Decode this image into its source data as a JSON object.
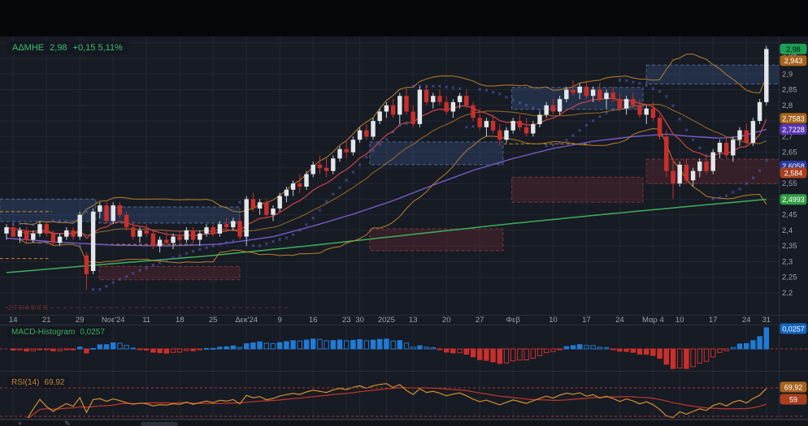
{
  "header": {
    "symbol": "ΑΔΜΗΕ",
    "price": "2,98",
    "change": "+0,15",
    "change_pct": "5,11%"
  },
  "watermark": {
    "text": "ZTRADER"
  },
  "macd_panel": {
    "label": "MACD-Histogram",
    "value": "0,0257",
    "badge": {
      "text": "0,0257",
      "bg": "#1565c0",
      "y": 405
    }
  },
  "rsi_panel": {
    "label": "RSI(14)",
    "value": "69,92",
    "badges": [
      {
        "text": "69,92",
        "bg": "#a8641e",
        "y": 477
      },
      {
        "text": "59",
        "bg": "#a8401e",
        "y": 492
      }
    ],
    "levels": [
      70,
      30
    ]
  },
  "price_axis": {
    "labels": [
      {
        "text": "2,95",
        "price": 2.95,
        "dy": -4
      },
      {
        "text": "2,9",
        "price": 2.9
      },
      {
        "text": "2,85",
        "price": 2.85
      },
      {
        "text": "2,8",
        "price": 2.8
      },
      {
        "text": "2,7",
        "price": 2.7
      },
      {
        "text": "2,65",
        "price": 2.65
      },
      {
        "text": "2,55",
        "price": 2.55
      },
      {
        "text": "2,45",
        "price": 2.45
      },
      {
        "text": "2,4",
        "price": 2.4
      },
      {
        "text": "2,35",
        "price": 2.35
      },
      {
        "text": "2,3",
        "price": 2.3
      },
      {
        "text": "2,25",
        "price": 2.25
      },
      {
        "text": "2,2",
        "price": 2.2
      }
    ],
    "badges": [
      {
        "text": "2,98",
        "price": 2.98,
        "bg": "#1e9e57",
        "fg": "#071209"
      },
      {
        "text": "2,943",
        "price": 2.943,
        "bg": "#a8641e",
        "fg": "#ffffff"
      },
      {
        "text": "2,7583",
        "price": 2.7583,
        "bg": "#a8641e",
        "fg": "#ffffff"
      },
      {
        "text": "2,7228",
        "price": 2.7228,
        "bg": "#5b35b5",
        "fg": "#ffffff"
      },
      {
        "text": "2,6058",
        "price": 2.6058,
        "bg": "#2b3a9e",
        "fg": "#ffffff"
      },
      {
        "text": "2,584",
        "price": 2.584,
        "bg": "#a8401e",
        "fg": "#ffffff"
      },
      {
        "text": "2,4993",
        "price": 2.4993,
        "bg": "#2f9e44",
        "fg": "#ffffff"
      }
    ]
  },
  "time_axis": {
    "ticks": [
      {
        "label": "14",
        "i": 1
      },
      {
        "label": "21",
        "i": 6
      },
      {
        "label": "29",
        "i": 11
      },
      {
        "label": "Νοε'24",
        "i": 16
      },
      {
        "label": "11",
        "i": 21
      },
      {
        "label": "18",
        "i": 26
      },
      {
        "label": "25",
        "i": 31
      },
      {
        "label": "Δεκ'24",
        "i": 36
      },
      {
        "label": "9",
        "i": 41
      },
      {
        "label": "16",
        "i": 46
      },
      {
        "label": "23",
        "i": 51
      },
      {
        "label": "30",
        "i": 53
      },
      {
        "label": "2025",
        "i": 57
      },
      {
        "label": "13",
        "i": 61
      },
      {
        "label": "20",
        "i": 66
      },
      {
        "label": "27",
        "i": 71
      },
      {
        "label": "Φεβ",
        "i": 76
      },
      {
        "label": "10",
        "i": 82
      },
      {
        "label": "17",
        "i": 87
      },
      {
        "label": "24",
        "i": 92
      },
      {
        "label": "Μαρ 4",
        "i": 97
      },
      {
        "label": "10",
        "i": 101
      },
      {
        "label": "17",
        "i": 106
      },
      {
        "label": "24",
        "i": 111
      },
      {
        "label": "31",
        "i": 114
      }
    ]
  },
  "colors": {
    "background": "#171b24",
    "top_strip": "#06070a",
    "grid": "#222734",
    "separator": "#2a2f3d",
    "axis_text": "#9da1ab",
    "up_candle": "#e3e6ea",
    "up_wick": "#c8ccd2",
    "down_candle": "#c9302c",
    "bollinger": "#b9802a",
    "ema_fast": "#cd4545",
    "sma_mid": "#7b5fd0",
    "sma_long": "#3faf5c",
    "psar": "#5964c8",
    "supply_zone": "rgba(62,96,148,0.30)",
    "supply_border": "rgba(116,156,214,0.55)",
    "demand_zone": "rgba(122,42,50,0.30)",
    "demand_border": "rgba(196,84,84,0.50)",
    "macd_pos": "#1f7bd4",
    "macd_neg": "#c9302c",
    "level_red": "#a83232",
    "orange_level": "#c98a2e",
    "watermark": "#6b2d2d"
  },
  "chart_data": {
    "type": "candlestick",
    "title": "ΑΔΜΗΕ daily candlestick chart with Bollinger Bands, moving averages, Parabolic SAR, supply/demand zones, MACD-Histogram and RSI(14)",
    "x_range": "2024-10-14 to 2025-03-31 (daily)",
    "price_axis_range": [
      2.2,
      3.0
    ],
    "candles_format": [
      "open",
      "high",
      "low",
      "close"
    ],
    "candles": [
      [
        2.39,
        2.42,
        2.37,
        2.41
      ],
      [
        2.41,
        2.42,
        2.38,
        2.38
      ],
      [
        2.38,
        2.41,
        2.36,
        2.4
      ],
      [
        2.4,
        2.41,
        2.36,
        2.37
      ],
      [
        2.37,
        2.4,
        2.36,
        2.39
      ],
      [
        2.39,
        2.43,
        2.38,
        2.42
      ],
      [
        2.42,
        2.43,
        2.38,
        2.39
      ],
      [
        2.39,
        2.4,
        2.35,
        2.36
      ],
      [
        2.36,
        2.39,
        2.35,
        2.38
      ],
      [
        2.38,
        2.41,
        2.37,
        2.4
      ],
      [
        2.4,
        2.41,
        2.37,
        2.38
      ],
      [
        2.38,
        2.46,
        2.37,
        2.45
      ],
      [
        2.32,
        2.33,
        2.21,
        2.26
      ],
      [
        2.27,
        2.47,
        2.26,
        2.46
      ],
      [
        2.46,
        2.49,
        2.44,
        2.48
      ],
      [
        2.48,
        2.49,
        2.42,
        2.43
      ],
      [
        2.43,
        2.49,
        2.42,
        2.48
      ],
      [
        2.48,
        2.49,
        2.44,
        2.45
      ],
      [
        2.45,
        2.46,
        2.4,
        2.41
      ],
      [
        2.41,
        2.43,
        2.37,
        2.38
      ],
      [
        2.38,
        2.41,
        2.36,
        2.4
      ],
      [
        2.4,
        2.42,
        2.38,
        2.39
      ],
      [
        2.39,
        2.4,
        2.34,
        2.35
      ],
      [
        2.35,
        2.38,
        2.33,
        2.37
      ],
      [
        2.37,
        2.4,
        2.35,
        2.36
      ],
      [
        2.36,
        2.39,
        2.34,
        2.38
      ],
      [
        2.38,
        2.4,
        2.36,
        2.37
      ],
      [
        2.37,
        2.41,
        2.36,
        2.4
      ],
      [
        2.4,
        2.41,
        2.36,
        2.37
      ],
      [
        2.37,
        2.4,
        2.35,
        2.39
      ],
      [
        2.39,
        2.42,
        2.38,
        2.41
      ],
      [
        2.41,
        2.42,
        2.38,
        2.39
      ],
      [
        2.39,
        2.43,
        2.38,
        2.42
      ],
      [
        2.42,
        2.44,
        2.4,
        2.41
      ],
      [
        2.41,
        2.44,
        2.4,
        2.43
      ],
      [
        2.43,
        2.44,
        2.37,
        2.38
      ],
      [
        2.38,
        2.51,
        2.35,
        2.5
      ],
      [
        2.5,
        2.52,
        2.46,
        2.47
      ],
      [
        2.47,
        2.5,
        2.45,
        2.49
      ],
      [
        2.49,
        2.5,
        2.44,
        2.45
      ],
      [
        2.45,
        2.48,
        2.43,
        2.47
      ],
      [
        2.47,
        2.52,
        2.46,
        2.51
      ],
      [
        2.51,
        2.54,
        2.49,
        2.53
      ],
      [
        2.53,
        2.56,
        2.51,
        2.55
      ],
      [
        2.55,
        2.58,
        2.52,
        2.54
      ],
      [
        2.54,
        2.59,
        2.53,
        2.58
      ],
      [
        2.58,
        2.62,
        2.57,
        2.61
      ],
      [
        2.61,
        2.64,
        2.58,
        2.6
      ],
      [
        2.6,
        2.63,
        2.57,
        2.59
      ],
      [
        2.59,
        2.64,
        2.58,
        2.63
      ],
      [
        2.63,
        2.67,
        2.62,
        2.66
      ],
      [
        2.66,
        2.69,
        2.63,
        2.65
      ],
      [
        2.65,
        2.7,
        2.64,
        2.69
      ],
      [
        2.69,
        2.73,
        2.68,
        2.72
      ],
      [
        2.72,
        2.74,
        2.69,
        2.7
      ],
      [
        2.7,
        2.76,
        2.69,
        2.75
      ],
      [
        2.75,
        2.79,
        2.74,
        2.78
      ],
      [
        2.78,
        2.81,
        2.76,
        2.8
      ],
      [
        2.8,
        2.82,
        2.76,
        2.77
      ],
      [
        2.77,
        2.84,
        2.74,
        2.83
      ],
      [
        2.83,
        2.86,
        2.77,
        2.78
      ],
      [
        2.78,
        2.8,
        2.73,
        2.74
      ],
      [
        2.74,
        2.86,
        2.73,
        2.85
      ],
      [
        2.85,
        2.86,
        2.8,
        2.81
      ],
      [
        2.81,
        2.84,
        2.79,
        2.83
      ],
      [
        2.83,
        2.85,
        2.8,
        2.81
      ],
      [
        2.81,
        2.83,
        2.77,
        2.78
      ],
      [
        2.78,
        2.82,
        2.76,
        2.81
      ],
      [
        2.81,
        2.84,
        2.79,
        2.83
      ],
      [
        2.83,
        2.85,
        2.79,
        2.8
      ],
      [
        2.8,
        2.81,
        2.75,
        2.76
      ],
      [
        2.76,
        2.79,
        2.72,
        2.73
      ],
      [
        2.73,
        2.76,
        2.7,
        2.75
      ],
      [
        2.75,
        2.77,
        2.71,
        2.72
      ],
      [
        2.72,
        2.74,
        2.67,
        2.69
      ],
      [
        2.69,
        2.73,
        2.68,
        2.72
      ],
      [
        2.72,
        2.76,
        2.71,
        2.75
      ],
      [
        2.75,
        2.77,
        2.72,
        2.73
      ],
      [
        2.73,
        2.76,
        2.7,
        2.71
      ],
      [
        2.71,
        2.75,
        2.7,
        2.74
      ],
      [
        2.74,
        2.78,
        2.73,
        2.77
      ],
      [
        2.77,
        2.81,
        2.76,
        2.8
      ],
      [
        2.8,
        2.82,
        2.77,
        2.78
      ],
      [
        2.78,
        2.83,
        2.77,
        2.82
      ],
      [
        2.82,
        2.86,
        2.81,
        2.85
      ],
      [
        2.85,
        2.88,
        2.83,
        2.84
      ],
      [
        2.84,
        2.87,
        2.82,
        2.86
      ],
      [
        2.86,
        2.88,
        2.82,
        2.83
      ],
      [
        2.83,
        2.86,
        2.81,
        2.85
      ],
      [
        2.85,
        2.87,
        2.81,
        2.82
      ],
      [
        2.82,
        2.85,
        2.79,
        2.84
      ],
      [
        2.84,
        2.86,
        2.81,
        2.82
      ],
      [
        2.82,
        2.84,
        2.78,
        2.79
      ],
      [
        2.79,
        2.83,
        2.77,
        2.82
      ],
      [
        2.82,
        2.84,
        2.79,
        2.8
      ],
      [
        2.8,
        2.82,
        2.76,
        2.77
      ],
      [
        2.77,
        2.8,
        2.74,
        2.79
      ],
      [
        2.79,
        2.81,
        2.75,
        2.76
      ],
      [
        2.76,
        2.77,
        2.69,
        2.7
      ],
      [
        2.7,
        2.72,
        2.57,
        2.59
      ],
      [
        2.59,
        2.63,
        2.5,
        2.55
      ],
      [
        2.55,
        2.62,
        2.54,
        2.61
      ],
      [
        2.61,
        2.63,
        2.55,
        2.56
      ],
      [
        2.56,
        2.6,
        2.54,
        2.59
      ],
      [
        2.59,
        2.63,
        2.57,
        2.62
      ],
      [
        2.62,
        2.64,
        2.58,
        2.59
      ],
      [
        2.59,
        2.66,
        2.58,
        2.65
      ],
      [
        2.65,
        2.69,
        2.63,
        2.68
      ],
      [
        2.68,
        2.7,
        2.63,
        2.64
      ],
      [
        2.64,
        2.7,
        2.62,
        2.69
      ],
      [
        2.69,
        2.73,
        2.67,
        2.72
      ],
      [
        2.72,
        2.74,
        2.67,
        2.68
      ],
      [
        2.68,
        2.76,
        2.67,
        2.75
      ],
      [
        2.75,
        2.82,
        2.74,
        2.81
      ],
      [
        2.81,
        2.99,
        2.8,
        2.98
      ]
    ],
    "zones": [
      {
        "type": "supply",
        "i1": -1,
        "i2": 13.4,
        "top": 2.5,
        "bottom": 2.428
      },
      {
        "type": "supply",
        "i1": 13.9,
        "i2": 35,
        "top": 2.475,
        "bottom": 2.423
      },
      {
        "type": "demand",
        "i1": 13.9,
        "i2": 35,
        "top": 2.285,
        "bottom": 2.242
      },
      {
        "type": "supply",
        "i1": 54.5,
        "i2": 74.5,
        "top": 2.683,
        "bottom": 2.61
      },
      {
        "type": "demand",
        "i1": 54.5,
        "i2": 74.5,
        "top": 2.405,
        "bottom": 2.335
      },
      {
        "type": "supply",
        "i1": 75.8,
        "i2": 95.5,
        "top": 2.857,
        "bottom": 2.787
      },
      {
        "type": "demand",
        "i1": 75.8,
        "i2": 95.5,
        "top": 2.57,
        "bottom": 2.49
      },
      {
        "type": "supply",
        "i1": 96,
        "i2": 115.9,
        "top": 2.929,
        "bottom": 2.868
      },
      {
        "type": "demand",
        "i1": 96,
        "i2": 115.9,
        "top": 2.628,
        "bottom": 2.55
      }
    ],
    "orange_levels": [
      {
        "price": 2.46,
        "i1": -1,
        "i2": 6.8
      },
      {
        "price": 2.31,
        "i1": -1,
        "i2": 6.3
      },
      {
        "price": 2.355,
        "i1": 13.9,
        "i2": 28
      },
      {
        "price": 2.677,
        "i1": 74.6,
        "i2": 87.5
      }
    ],
    "sma_long_points": [
      [
        0,
        2.265
      ],
      [
        15,
        2.292
      ],
      [
        30,
        2.318
      ],
      [
        45,
        2.35
      ],
      [
        60,
        2.385
      ],
      [
        75,
        2.42
      ],
      [
        90,
        2.452
      ],
      [
        105,
        2.482
      ],
      [
        114,
        2.4993
      ]
    ],
    "sma_mid_points": [
      [
        0,
        2.375
      ],
      [
        8,
        2.362
      ],
      [
        16,
        2.353
      ],
      [
        24,
        2.35
      ],
      [
        32,
        2.356
      ],
      [
        40,
        2.38
      ],
      [
        46,
        2.414
      ],
      [
        52,
        2.452
      ],
      [
        58,
        2.495
      ],
      [
        64,
        2.545
      ],
      [
        70,
        2.592
      ],
      [
        76,
        2.63
      ],
      [
        82,
        2.662
      ],
      [
        88,
        2.685
      ],
      [
        94,
        2.7
      ],
      [
        99,
        2.708
      ],
      [
        103,
        2.7
      ],
      [
        107,
        2.695
      ],
      [
        110,
        2.7
      ],
      [
        114,
        2.7228
      ]
    ],
    "indicator_settings": {
      "bollinger": {
        "period": 20,
        "stdev": 2
      },
      "ema_fast_period": 10,
      "macd": [
        12,
        26,
        9
      ],
      "rsi_period": 14,
      "psar": [
        0.02,
        0.2
      ]
    }
  }
}
